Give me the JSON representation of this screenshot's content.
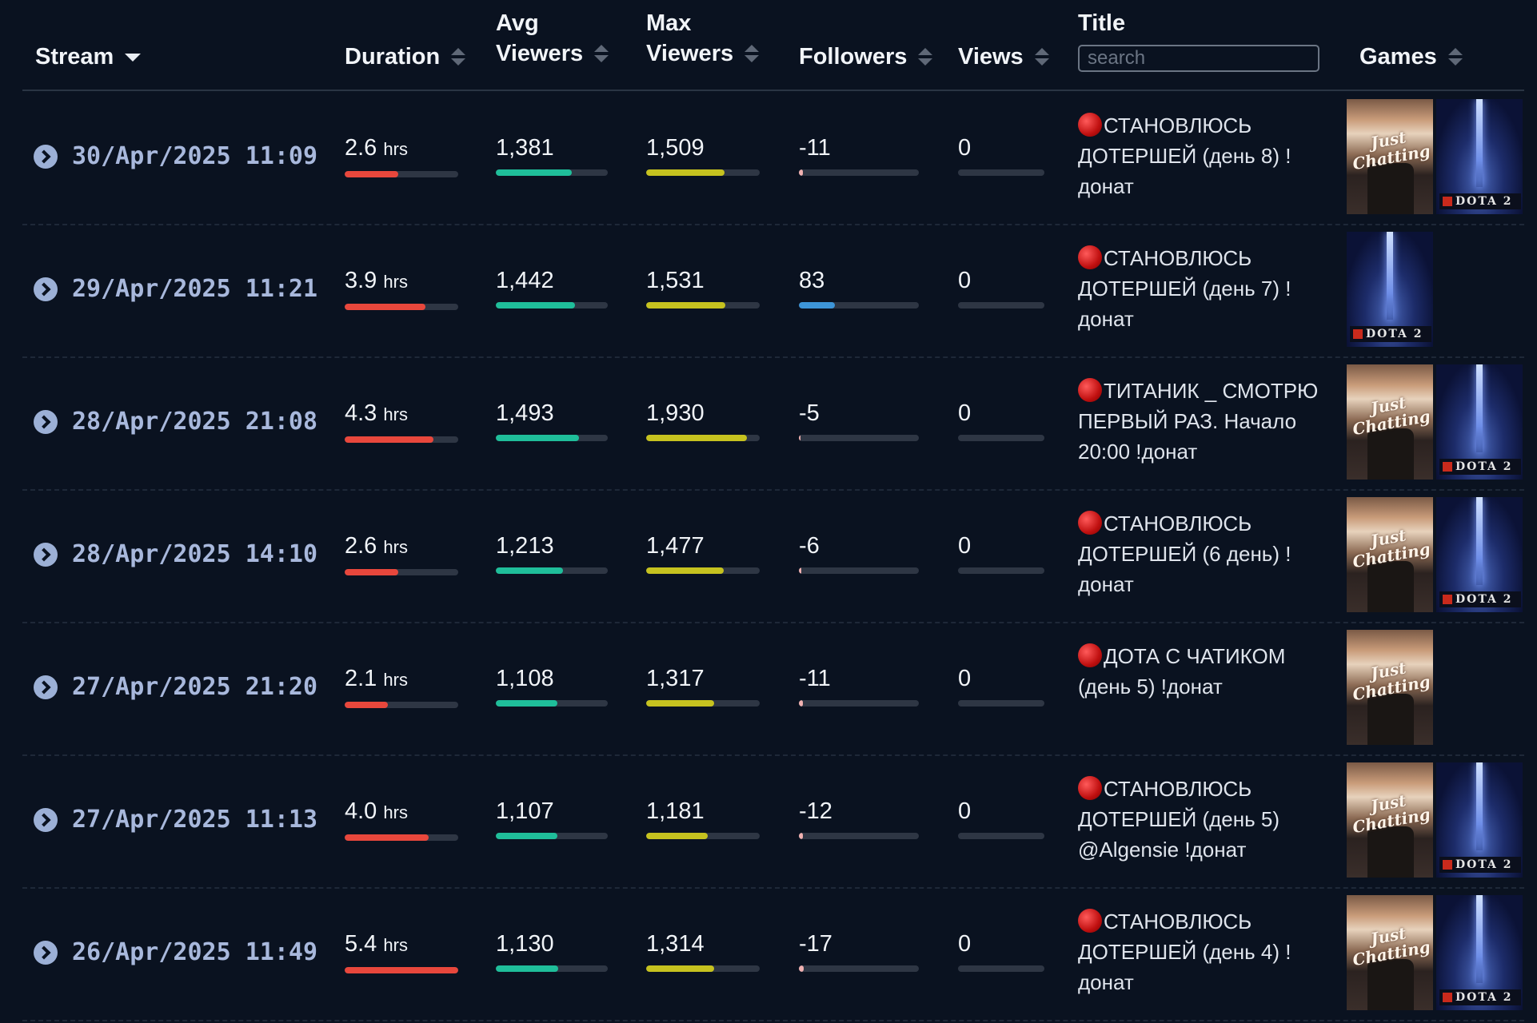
{
  "header": {
    "stream": "Stream",
    "duration": "Duration",
    "avg_1": "Avg",
    "avg_2": "Viewers",
    "max_1": "Max",
    "max_2": "Viewers",
    "followers": "Followers",
    "views": "Views",
    "title": "Title",
    "search_placeholder": "search",
    "games": "Games"
  },
  "colors": {
    "duration": "#e8473c",
    "avg": "#1fbe9a",
    "max": "#c6c21f",
    "followers_positive": "#3d95d8",
    "followers_negative": "#f0b1b1"
  },
  "rows": [
    {
      "stream": "30/Apr/2025 11:09",
      "duration": "2.6",
      "duration_unit": "hrs",
      "duration_fill": 0.47,
      "avg": "1,381",
      "avg_fill": 0.68,
      "max": "1,509",
      "max_fill": 0.69,
      "followers": "-11",
      "followers_fill": 0.03,
      "views": "0",
      "title": "СТАНОВЛЮСЬ ДОТЕРШЕЙ (день 8) ! донат",
      "games": [
        "Just Chatting",
        "Dota 2"
      ]
    },
    {
      "stream": "29/Apr/2025 11:21",
      "duration": "3.9",
      "duration_unit": "hrs",
      "duration_fill": 0.71,
      "avg": "1,442",
      "avg_fill": 0.71,
      "max": "1,531",
      "max_fill": 0.7,
      "followers": "83",
      "followers_fill": 0.3,
      "views": "0",
      "title": "СТАНОВЛЮСЬ ДОТЕРШЕЙ (день 7) ! донат",
      "games": [
        "Dota 2"
      ]
    },
    {
      "stream": "28/Apr/2025 21:08",
      "duration": "4.3",
      "duration_unit": "hrs",
      "duration_fill": 0.78,
      "avg": "1,493",
      "avg_fill": 0.74,
      "max": "1,930",
      "max_fill": 0.89,
      "followers": "-5",
      "followers_fill": 0.01,
      "views": "0",
      "title": "ТИТАНИК _ СМОТРЮ ПЕРВЫЙ РАЗ. Начало 20:00 !донат",
      "games": [
        "Just Chatting",
        "Dota 2"
      ]
    },
    {
      "stream": "28/Apr/2025 14:10",
      "duration": "2.6",
      "duration_unit": "hrs",
      "duration_fill": 0.47,
      "avg": "1,213",
      "avg_fill": 0.6,
      "max": "1,477",
      "max_fill": 0.68,
      "followers": "-6",
      "followers_fill": 0.02,
      "views": "0",
      "title": "СТАНОВЛЮСЬ ДОТЕРШЕЙ (6 день) ! донат",
      "games": [
        "Just Chatting",
        "Dota 2"
      ]
    },
    {
      "stream": "27/Apr/2025 21:20",
      "duration": "2.1",
      "duration_unit": "hrs",
      "duration_fill": 0.38,
      "avg": "1,108",
      "avg_fill": 0.55,
      "max": "1,317",
      "max_fill": 0.6,
      "followers": "-11",
      "followers_fill": 0.03,
      "views": "0",
      "title": "ДОТА С ЧАТИКОМ (день 5) !донат",
      "games": [
        "Just Chatting"
      ]
    },
    {
      "stream": "27/Apr/2025 11:13",
      "duration": "4.0",
      "duration_unit": "hrs",
      "duration_fill": 0.74,
      "avg": "1,107",
      "avg_fill": 0.55,
      "max": "1,181",
      "max_fill": 0.54,
      "followers": "-12",
      "followers_fill": 0.03,
      "views": "0",
      "title": "СТАНОВЛЮСЬ ДОТЕРШЕЙ (день 5) @Algensie !донат",
      "games": [
        "Just Chatting",
        "Dota 2"
      ]
    },
    {
      "stream": "26/Apr/2025 11:49",
      "duration": "5.4",
      "duration_unit": "hrs",
      "duration_fill": 1.0,
      "avg": "1,130",
      "avg_fill": 0.56,
      "max": "1,314",
      "max_fill": 0.6,
      "followers": "-17",
      "followers_fill": 0.04,
      "views": "0",
      "title": "СТАНОВЛЮСЬ ДОТЕРШЕЙ (день 4) ! донат",
      "games": [
        "Just Chatting",
        "Dota 2"
      ]
    }
  ]
}
